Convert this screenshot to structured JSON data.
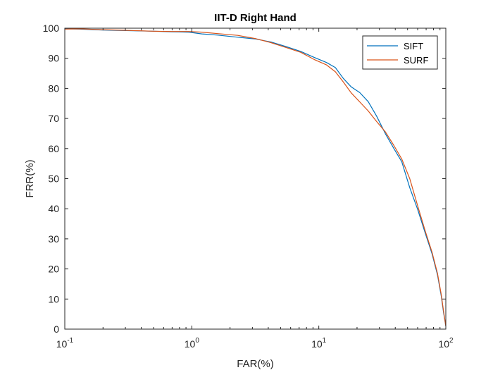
{
  "chart_data": {
    "type": "line",
    "title": "IIT-D Right Hand",
    "xlabel": "FAR(%)",
    "ylabel": "FRR(%)",
    "xscale": "log",
    "xlim": [
      0.1,
      100
    ],
    "ylim": [
      0,
      100
    ],
    "grid": false,
    "legend_position": "top-right",
    "x_ticks": [
      {
        "value": 0.1,
        "base": "10",
        "exp": "-1"
      },
      {
        "value": 1,
        "base": "10",
        "exp": "0"
      },
      {
        "value": 10,
        "base": "10",
        "exp": "1"
      },
      {
        "value": 100,
        "base": "10",
        "exp": "2"
      }
    ],
    "y_ticks": [
      {
        "value": 0,
        "label": "0"
      },
      {
        "value": 10,
        "label": "10"
      },
      {
        "value": 20,
        "label": "20"
      },
      {
        "value": 30,
        "label": "30"
      },
      {
        "value": 40,
        "label": "40"
      },
      {
        "value": 50,
        "label": "50"
      },
      {
        "value": 60,
        "label": "60"
      },
      {
        "value": 70,
        "label": "70"
      },
      {
        "value": 80,
        "label": "80"
      },
      {
        "value": 90,
        "label": "90"
      },
      {
        "value": 100,
        "label": "100"
      }
    ],
    "series": [
      {
        "name": "SIFT",
        "color": "#0072BD",
        "points": [
          [
            0.1,
            99.8
          ],
          [
            0.13,
            99.7
          ],
          [
            0.2,
            99.4
          ],
          [
            0.3,
            99.2
          ],
          [
            0.5,
            99.0
          ],
          [
            0.7,
            98.8
          ],
          [
            0.95,
            98.7
          ],
          [
            1.2,
            98.1
          ],
          [
            1.6,
            97.7
          ],
          [
            2.3,
            97.0
          ],
          [
            3.2,
            96.4
          ],
          [
            4.2,
            95.4
          ],
          [
            5.5,
            93.9
          ],
          [
            7.2,
            92.3
          ],
          [
            9.2,
            90.3
          ],
          [
            11.5,
            88.6
          ],
          [
            13.5,
            86.9
          ],
          [
            15.6,
            83.3
          ],
          [
            18.0,
            80.5
          ],
          [
            21.0,
            78.6
          ],
          [
            24.5,
            75.6
          ],
          [
            28.5,
            70.8
          ],
          [
            33.5,
            64.9
          ],
          [
            39.0,
            60.0
          ],
          [
            45.0,
            55.6
          ],
          [
            52.0,
            47.0
          ],
          [
            60.0,
            39.8
          ],
          [
            69.0,
            31.8
          ],
          [
            78.0,
            25.0
          ],
          [
            86.0,
            18.0
          ],
          [
            92.0,
            11.0
          ],
          [
            96.0,
            5.5
          ],
          [
            100.0,
            1.0
          ]
        ]
      },
      {
        "name": "SURF",
        "color": "#D95319",
        "points": [
          [
            0.1,
            99.7
          ],
          [
            0.13,
            99.8
          ],
          [
            0.2,
            99.5
          ],
          [
            0.3,
            99.3
          ],
          [
            0.5,
            99.0
          ],
          [
            0.7,
            98.9
          ],
          [
            0.95,
            98.9
          ],
          [
            1.2,
            98.7
          ],
          [
            1.6,
            98.2
          ],
          [
            2.3,
            97.6
          ],
          [
            3.2,
            96.5
          ],
          [
            4.2,
            95.2
          ],
          [
            5.5,
            93.6
          ],
          [
            7.2,
            92.0
          ],
          [
            9.2,
            89.6
          ],
          [
            11.5,
            87.8
          ],
          [
            13.5,
            85.5
          ],
          [
            15.6,
            82.1
          ],
          [
            18.0,
            78.5
          ],
          [
            21.0,
            75.5
          ],
          [
            24.5,
            72.5
          ],
          [
            28.5,
            69.0
          ],
          [
            33.5,
            65.5
          ],
          [
            39.0,
            61.0
          ],
          [
            45.0,
            56.5
          ],
          [
            52.0,
            50.0
          ],
          [
            60.0,
            41.0
          ],
          [
            69.0,
            32.5
          ],
          [
            78.0,
            25.5
          ],
          [
            86.0,
            18.5
          ],
          [
            92.0,
            11.5
          ],
          [
            96.0,
            6.0
          ],
          [
            100.0,
            1.0
          ]
        ]
      }
    ]
  }
}
